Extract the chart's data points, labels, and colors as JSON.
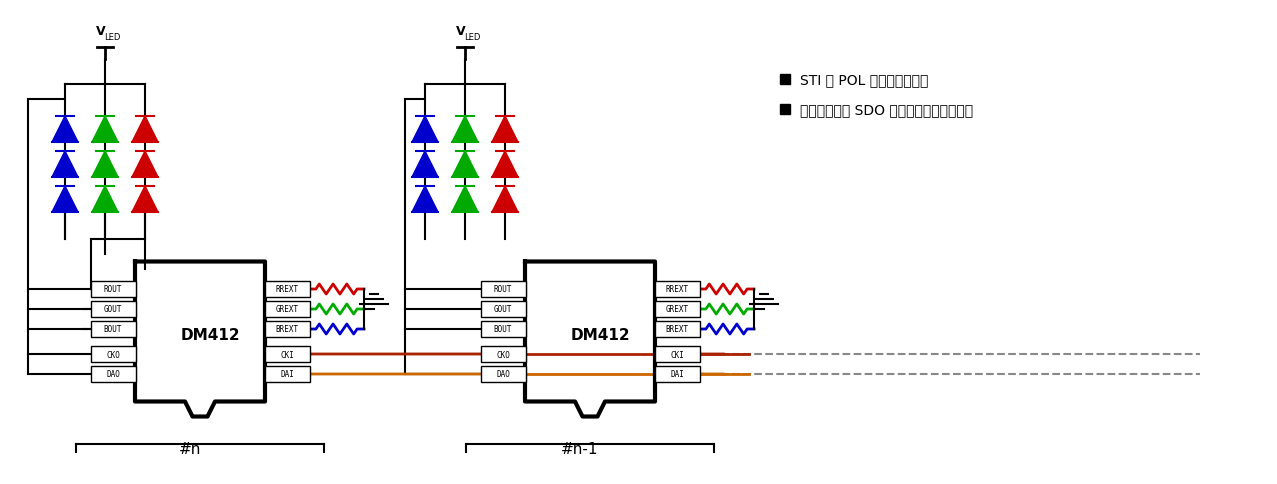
{
  "bg_color": "#ffffff",
  "text_color": "#000000",
  "led_colors": [
    "#0000cc",
    "#00aa00",
    "#cc0000"
  ],
  "resistor_colors": [
    "#cc0000",
    "#00aa00",
    "#0000cc"
  ],
  "chip_label": "DM412",
  "chip_label2": "DM412",
  "label_n": "#n",
  "label_n1": "#n-1",
  "legend1": "STI 与 POL 端连接至高准位",
  "legend2": "视系统应用将 SDO 端连接至高或低电位源",
  "vleds_label": "V",
  "vleds_sub": "LED",
  "pin_left": [
    "ROUT",
    "GOUT",
    "BOUT",
    "CKO",
    "DAO"
  ],
  "pin_right": [
    "RREXT",
    "GREXT",
    "BREXT",
    "CKI",
    "DAI"
  ],
  "cki_color": "#aa2200",
  "dai_color": "#cc6600",
  "dashed_color": "#888888",
  "wire_lw": 1.5,
  "resistor_lw": 2.0
}
